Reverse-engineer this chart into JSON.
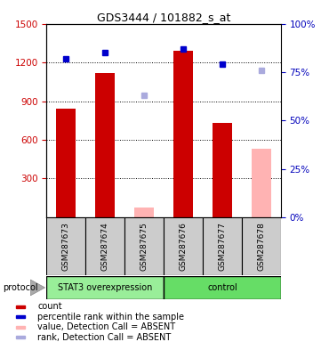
{
  "title": "GDS3444 / 101882_s_at",
  "samples": [
    "GSM287673",
    "GSM287674",
    "GSM287675",
    "GSM287676",
    "GSM287677",
    "GSM287678"
  ],
  "bar_values": [
    840,
    1120,
    75,
    1290,
    730,
    530
  ],
  "bar_colors": [
    "#cc0000",
    "#cc0000",
    "#ffb3b3",
    "#cc0000",
    "#cc0000",
    "#ffb3b3"
  ],
  "rank_values": [
    82,
    85,
    63,
    87,
    79,
    76
  ],
  "rank_colors": [
    "#0000cc",
    "#0000cc",
    "#aaaadd",
    "#0000cc",
    "#0000cc",
    "#aaaadd"
  ],
  "absent_mask": [
    false,
    false,
    true,
    false,
    false,
    true
  ],
  "ylim_left": [
    0,
    1500
  ],
  "ylim_right": [
    0,
    100
  ],
  "yticks_left": [
    300,
    600,
    900,
    1200,
    1500
  ],
  "yticks_right": [
    0,
    25,
    50,
    75,
    100
  ],
  "protocol_groups": [
    {
      "label": "STAT3 overexpression",
      "start": 0,
      "end": 3,
      "color": "#99ee99"
    },
    {
      "label": "control",
      "start": 3,
      "end": 6,
      "color": "#66dd66"
    }
  ],
  "legend_items": [
    {
      "color": "#cc0000",
      "label": "count"
    },
    {
      "color": "#0000cc",
      "label": "percentile rank within the sample"
    },
    {
      "color": "#ffb3b3",
      "label": "value, Detection Call = ABSENT"
    },
    {
      "color": "#aaaadd",
      "label": "rank, Detection Call = ABSENT"
    }
  ],
  "background_color": "#ffffff",
  "plot_bg_color": "#ffffff",
  "tick_label_color_left": "#cc0000",
  "tick_label_color_right": "#0000bb",
  "sample_box_color": "#cccccc",
  "bar_width": 0.5
}
